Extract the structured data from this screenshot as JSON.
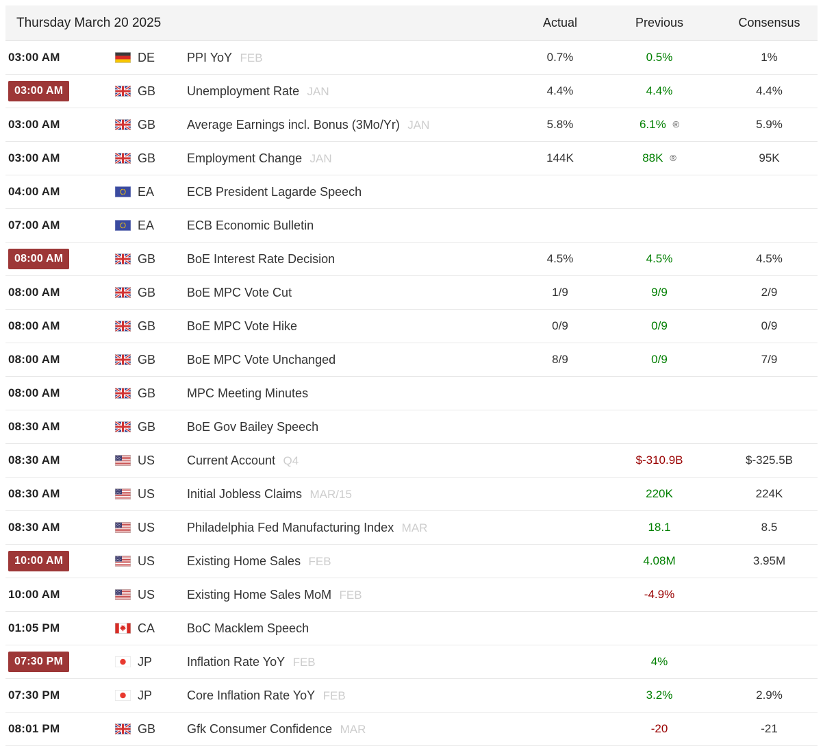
{
  "title": "Thursday March 20 2025",
  "columns": {
    "actual": "Actual",
    "previous": "Previous",
    "consensus": "Consensus"
  },
  "legend": {
    "revised_symbol": "®"
  },
  "colors": {
    "time_badge_red": "#9d3737",
    "positive_green": "#007f00",
    "negative_red": "#990000",
    "header_bg": "#f4f4f4",
    "row_border": "#e8e8e8",
    "text": "#333333",
    "period_muted": "#cdcdcd"
  },
  "rows": [
    {
      "time": "03:00 AM",
      "time_highlighted": false,
      "country": {
        "code": "DE",
        "flag": "de"
      },
      "event": "PPI YoY",
      "period": "FEB",
      "actual": {
        "text": "0.7%",
        "tone": "neutral"
      },
      "previous": {
        "text": "0.5%",
        "tone": "positive",
        "revised": false
      },
      "consensus": {
        "text": "1%",
        "tone": "neutral"
      }
    },
    {
      "time": "03:00 AM",
      "time_highlighted": true,
      "country": {
        "code": "GB",
        "flag": "gb"
      },
      "event": "Unemployment Rate",
      "period": "JAN",
      "actual": {
        "text": "4.4%",
        "tone": "neutral"
      },
      "previous": {
        "text": "4.4%",
        "tone": "positive",
        "revised": false
      },
      "consensus": {
        "text": "4.4%",
        "tone": "neutral"
      }
    },
    {
      "time": "03:00 AM",
      "time_highlighted": false,
      "country": {
        "code": "GB",
        "flag": "gb"
      },
      "event": "Average Earnings incl. Bonus (3Mo/Yr)",
      "period": "JAN",
      "actual": {
        "text": "5.8%",
        "tone": "neutral"
      },
      "previous": {
        "text": "6.1%",
        "tone": "positive",
        "revised": true
      },
      "consensus": {
        "text": "5.9%",
        "tone": "neutral"
      }
    },
    {
      "time": "03:00 AM",
      "time_highlighted": false,
      "country": {
        "code": "GB",
        "flag": "gb"
      },
      "event": "Employment Change",
      "period": "JAN",
      "actual": {
        "text": "144K",
        "tone": "neutral"
      },
      "previous": {
        "text": "88K",
        "tone": "positive",
        "revised": true
      },
      "consensus": {
        "text": "95K",
        "tone": "neutral"
      }
    },
    {
      "time": "04:00 AM",
      "time_highlighted": false,
      "country": {
        "code": "EA",
        "flag": "eu"
      },
      "event": "ECB President Lagarde Speech",
      "period": "",
      "actual": {
        "text": "",
        "tone": "neutral"
      },
      "previous": {
        "text": "",
        "tone": "neutral",
        "revised": false
      },
      "consensus": {
        "text": "",
        "tone": "neutral"
      }
    },
    {
      "time": "07:00 AM",
      "time_highlighted": false,
      "country": {
        "code": "EA",
        "flag": "eu"
      },
      "event": "ECB Economic Bulletin",
      "period": "",
      "actual": {
        "text": "",
        "tone": "neutral"
      },
      "previous": {
        "text": "",
        "tone": "neutral",
        "revised": false
      },
      "consensus": {
        "text": "",
        "tone": "neutral"
      }
    },
    {
      "time": "08:00 AM",
      "time_highlighted": true,
      "country": {
        "code": "GB",
        "flag": "gb"
      },
      "event": "BoE Interest Rate Decision",
      "period": "",
      "actual": {
        "text": "4.5%",
        "tone": "neutral"
      },
      "previous": {
        "text": "4.5%",
        "tone": "positive",
        "revised": false
      },
      "consensus": {
        "text": "4.5%",
        "tone": "neutral"
      }
    },
    {
      "time": "08:00 AM",
      "time_highlighted": false,
      "country": {
        "code": "GB",
        "flag": "gb"
      },
      "event": "BoE MPC Vote Cut",
      "period": "",
      "actual": {
        "text": "1/9",
        "tone": "neutral"
      },
      "previous": {
        "text": "9/9",
        "tone": "positive",
        "revised": false
      },
      "consensus": {
        "text": "2/9",
        "tone": "neutral"
      }
    },
    {
      "time": "08:00 AM",
      "time_highlighted": false,
      "country": {
        "code": "GB",
        "flag": "gb"
      },
      "event": "BoE MPC Vote Hike",
      "period": "",
      "actual": {
        "text": "0/9",
        "tone": "neutral"
      },
      "previous": {
        "text": "0/9",
        "tone": "positive",
        "revised": false
      },
      "consensus": {
        "text": "0/9",
        "tone": "neutral"
      }
    },
    {
      "time": "08:00 AM",
      "time_highlighted": false,
      "country": {
        "code": "GB",
        "flag": "gb"
      },
      "event": "BoE MPC Vote Unchanged",
      "period": "",
      "actual": {
        "text": "8/9",
        "tone": "neutral"
      },
      "previous": {
        "text": "0/9",
        "tone": "positive",
        "revised": false
      },
      "consensus": {
        "text": "7/9",
        "tone": "neutral"
      }
    },
    {
      "time": "08:00 AM",
      "time_highlighted": false,
      "country": {
        "code": "GB",
        "flag": "gb"
      },
      "event": "MPC Meeting Minutes",
      "period": "",
      "actual": {
        "text": "",
        "tone": "neutral"
      },
      "previous": {
        "text": "",
        "tone": "neutral",
        "revised": false
      },
      "consensus": {
        "text": "",
        "tone": "neutral"
      }
    },
    {
      "time": "08:30 AM",
      "time_highlighted": false,
      "country": {
        "code": "GB",
        "flag": "gb"
      },
      "event": "BoE Gov Bailey Speech",
      "period": "",
      "actual": {
        "text": "",
        "tone": "neutral"
      },
      "previous": {
        "text": "",
        "tone": "neutral",
        "revised": false
      },
      "consensus": {
        "text": "",
        "tone": "neutral"
      }
    },
    {
      "time": "08:30 AM",
      "time_highlighted": false,
      "country": {
        "code": "US",
        "flag": "us"
      },
      "event": "Current Account",
      "period": "Q4",
      "actual": {
        "text": "",
        "tone": "neutral"
      },
      "previous": {
        "text": "$-310.9B",
        "tone": "negative",
        "revised": false
      },
      "consensus": {
        "text": "$-325.5B",
        "tone": "neutral"
      }
    },
    {
      "time": "08:30 AM",
      "time_highlighted": false,
      "country": {
        "code": "US",
        "flag": "us"
      },
      "event": "Initial Jobless Claims",
      "period": "MAR/15",
      "actual": {
        "text": "",
        "tone": "neutral"
      },
      "previous": {
        "text": "220K",
        "tone": "positive",
        "revised": false
      },
      "consensus": {
        "text": "224K",
        "tone": "neutral"
      }
    },
    {
      "time": "08:30 AM",
      "time_highlighted": false,
      "country": {
        "code": "US",
        "flag": "us"
      },
      "event": "Philadelphia Fed Manufacturing Index",
      "period": "MAR",
      "actual": {
        "text": "",
        "tone": "neutral"
      },
      "previous": {
        "text": "18.1",
        "tone": "positive",
        "revised": false
      },
      "consensus": {
        "text": "8.5",
        "tone": "neutral"
      }
    },
    {
      "time": "10:00 AM",
      "time_highlighted": true,
      "country": {
        "code": "US",
        "flag": "us"
      },
      "event": "Existing Home Sales",
      "period": "FEB",
      "actual": {
        "text": "",
        "tone": "neutral"
      },
      "previous": {
        "text": "4.08M",
        "tone": "positive",
        "revised": false
      },
      "consensus": {
        "text": "3.95M",
        "tone": "neutral"
      }
    },
    {
      "time": "10:00 AM",
      "time_highlighted": false,
      "country": {
        "code": "US",
        "flag": "us"
      },
      "event": "Existing Home Sales MoM",
      "period": "FEB",
      "actual": {
        "text": "",
        "tone": "neutral"
      },
      "previous": {
        "text": "-4.9%",
        "tone": "negative",
        "revised": false
      },
      "consensus": {
        "text": "",
        "tone": "neutral"
      }
    },
    {
      "time": "01:05 PM",
      "time_highlighted": false,
      "country": {
        "code": "CA",
        "flag": "ca"
      },
      "event": "BoC Macklem Speech",
      "period": "",
      "actual": {
        "text": "",
        "tone": "neutral"
      },
      "previous": {
        "text": "",
        "tone": "neutral",
        "revised": false
      },
      "consensus": {
        "text": "",
        "tone": "neutral"
      }
    },
    {
      "time": "07:30 PM",
      "time_highlighted": true,
      "country": {
        "code": "JP",
        "flag": "jp"
      },
      "event": "Inflation Rate YoY",
      "period": "FEB",
      "actual": {
        "text": "",
        "tone": "neutral"
      },
      "previous": {
        "text": "4%",
        "tone": "positive",
        "revised": false
      },
      "consensus": {
        "text": "",
        "tone": "neutral"
      }
    },
    {
      "time": "07:30 PM",
      "time_highlighted": false,
      "country": {
        "code": "JP",
        "flag": "jp"
      },
      "event": "Core Inflation Rate YoY",
      "period": "FEB",
      "actual": {
        "text": "",
        "tone": "neutral"
      },
      "previous": {
        "text": "3.2%",
        "tone": "positive",
        "revised": false
      },
      "consensus": {
        "text": "2.9%",
        "tone": "neutral"
      }
    },
    {
      "time": "08:01 PM",
      "time_highlighted": false,
      "country": {
        "code": "GB",
        "flag": "gb"
      },
      "event": "Gfk Consumer Confidence",
      "period": "MAR",
      "actual": {
        "text": "",
        "tone": "neutral"
      },
      "previous": {
        "text": "-20",
        "tone": "negative",
        "revised": false
      },
      "consensus": {
        "text": "-21",
        "tone": "neutral"
      }
    }
  ]
}
